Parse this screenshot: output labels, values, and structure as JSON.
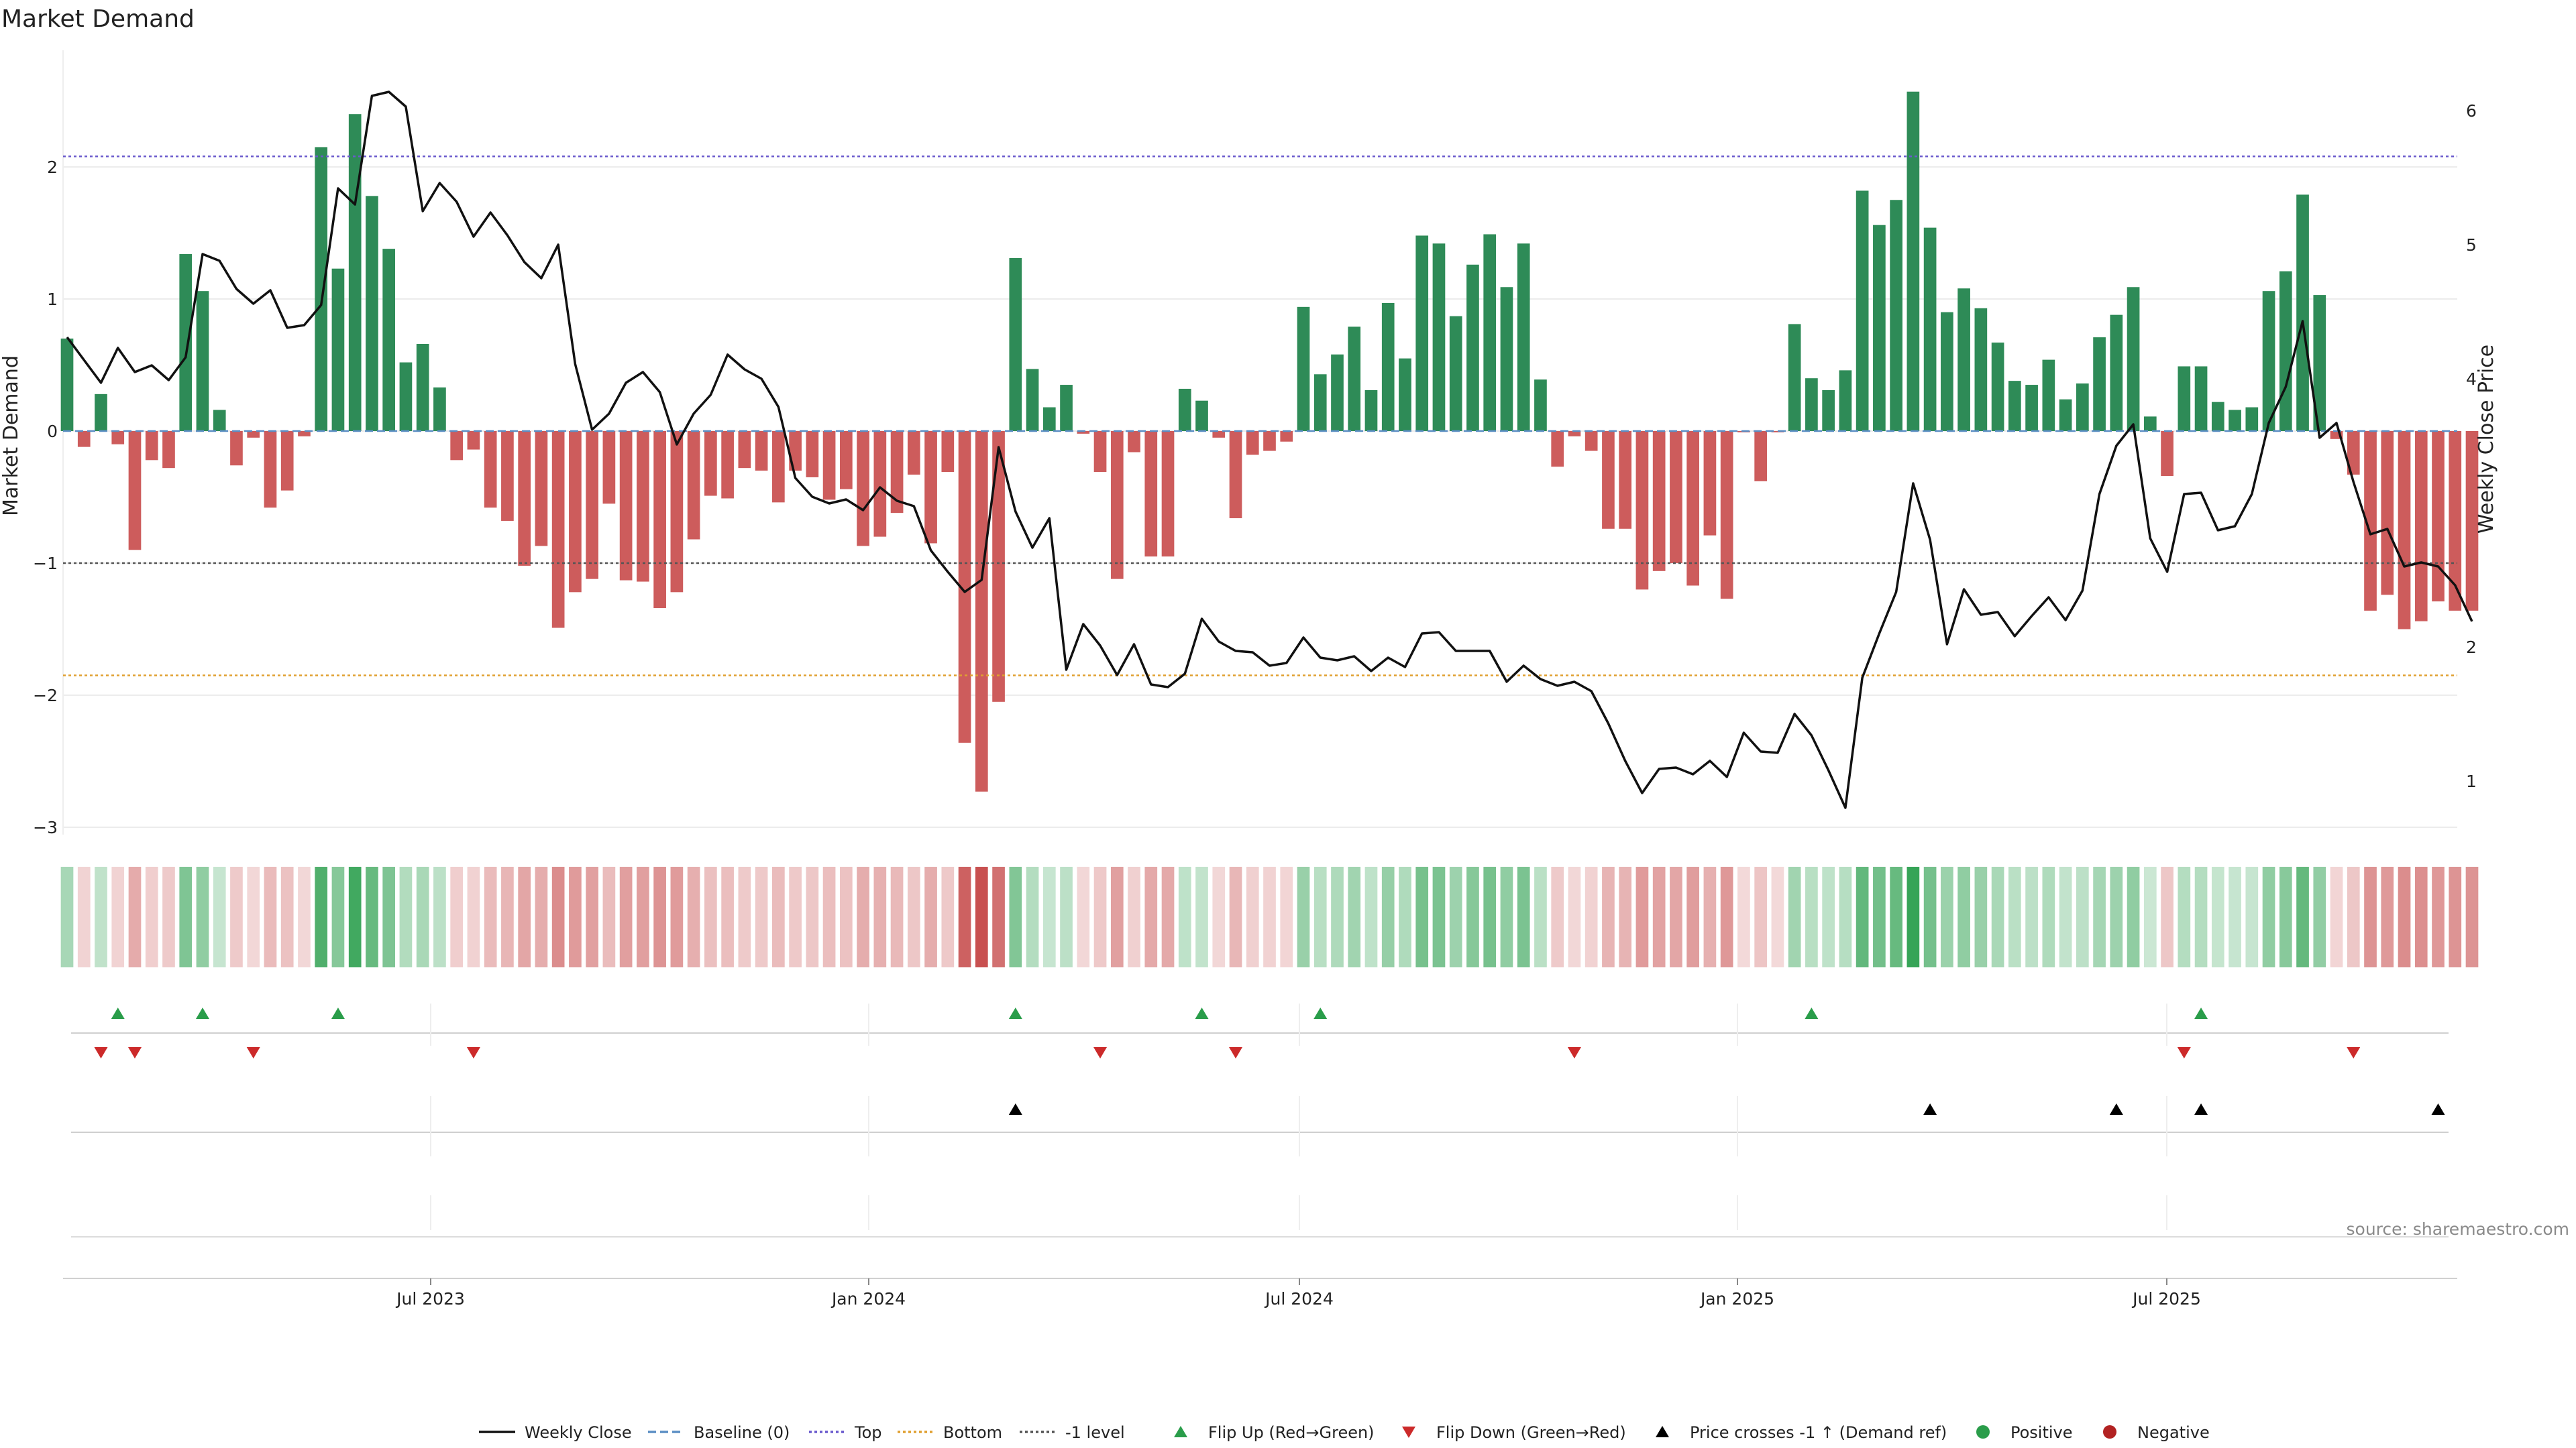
{
  "chart_data": {
    "type": "bar",
    "title": "Market Demand",
    "ylabel": "Market Demand",
    "y2label": "Weekly Close Price",
    "ylim": [
      -3.2,
      2.85
    ],
    "y2lim": [
      0.38,
      6.45
    ],
    "yticks": [
      "2",
      "1",
      "0",
      "−1",
      "−2",
      "−3"
    ],
    "y2ticks": [
      "6",
      "5",
      "4",
      "3",
      "2",
      "1"
    ],
    "xticks": [
      "Jul 2023",
      "Jan 2024",
      "Jul 2024",
      "Jan 2025",
      "Jul 2025"
    ],
    "reference_lines": {
      "top": 2.08,
      "bottom": -1.85,
      "minus_one": -1.0,
      "baseline": 0
    },
    "demand_bars": [
      0.7,
      -0.12,
      0.28,
      -0.1,
      -0.9,
      -0.22,
      -0.28,
      1.34,
      1.06,
      0.16,
      -0.26,
      -0.05,
      -0.58,
      -0.45,
      -0.04,
      2.15,
      1.23,
      2.4,
      1.78,
      1.38,
      0.52,
      0.66,
      0.33,
      -0.22,
      -0.14,
      -0.58,
      -0.68,
      -1.02,
      -0.87,
      -1.49,
      -1.22,
      -1.12,
      -0.55,
      -1.13,
      -1.14,
      -1.34,
      -1.22,
      -0.82,
      -0.49,
      -0.51,
      -0.28,
      -0.3,
      -0.54,
      -0.3,
      -0.35,
      -0.52,
      -0.44,
      -0.87,
      -0.8,
      -0.62,
      -0.33,
      -0.85,
      -0.31,
      -2.36,
      -2.73,
      -2.05,
      1.31,
      0.47,
      0.18,
      0.35,
      -0.02,
      -0.31,
      -1.12,
      -0.16,
      -0.95,
      -0.95,
      0.32,
      0.23,
      -0.05,
      -0.66,
      -0.18,
      -0.15,
      -0.08,
      0.94,
      0.43,
      0.58,
      0.79,
      0.31,
      0.97,
      0.55,
      1.48,
      1.42,
      0.87,
      1.26,
      1.49,
      1.09,
      1.42,
      0.39,
      -0.27,
      -0.04,
      -0.15,
      -0.74,
      -0.74,
      -1.2,
      -1.06,
      -1.0,
      -1.17,
      -0.79,
      -1.27,
      -0.01,
      -0.38,
      -0.01,
      0.81,
      0.4,
      0.31,
      0.46,
      1.82,
      1.56,
      1.75,
      2.57,
      1.54,
      0.9,
      1.08,
      0.93,
      0.67,
      0.38,
      0.35,
      0.54,
      0.24,
      0.36,
      0.71,
      0.88,
      1.09,
      0.11,
      -0.34,
      0.49,
      0.49,
      0.22,
      0.16,
      0.18,
      1.06,
      1.21,
      1.79,
      1.03,
      -0.06,
      -0.33,
      -1.36,
      -1.24,
      -1.5,
      -1.44,
      -1.29,
      -1.36,
      -1.36
    ],
    "weekly_close": [
      4.31,
      4.14,
      3.97,
      4.23,
      4.05,
      4.1,
      3.99,
      4.16,
      4.93,
      4.88,
      4.67,
      4.56,
      4.66,
      4.38,
      4.4,
      4.55,
      5.42,
      5.3,
      6.11,
      6.14,
      6.03,
      5.25,
      5.46,
      5.32,
      5.06,
      5.24,
      5.07,
      4.87,
      4.75,
      5.0,
      4.11,
      3.62,
      3.74,
      3.97,
      4.05,
      3.9,
      3.51,
      3.74,
      3.88,
      4.18,
      4.07,
      4.0,
      3.79,
      3.26,
      3.12,
      3.07,
      3.1,
      3.02,
      3.19,
      3.09,
      3.05,
      2.72,
      2.56,
      2.41,
      2.5,
      3.49,
      3.01,
      2.74,
      2.96,
      1.83,
      2.17,
      2.01,
      1.79,
      2.02,
      1.72,
      1.7,
      1.8,
      2.21,
      2.04,
      1.97,
      1.96,
      1.86,
      1.88,
      2.07,
      1.92,
      1.9,
      1.93,
      1.82,
      1.92,
      1.85,
      2.1,
      2.11,
      1.97,
      1.97,
      1.97,
      1.74,
      1.86,
      1.76,
      1.71,
      1.74,
      1.67,
      1.43,
      1.15,
      0.91,
      1.09,
      1.1,
      1.05,
      1.15,
      1.03,
      1.36,
      1.22,
      1.21,
      1.5,
      1.34,
      1.08,
      0.8,
      1.77,
      2.1,
      2.41,
      3.22,
      2.8,
      2.02,
      2.43,
      2.24,
      2.26,
      2.08,
      2.23,
      2.37,
      2.2,
      2.42,
      3.14,
      3.5,
      3.66,
      2.81,
      2.56,
      3.14,
      3.15,
      2.87,
      2.9,
      3.14,
      3.67,
      3.94,
      4.43,
      3.56,
      3.67,
      3.23,
      2.84,
      2.88,
      2.6,
      2.63,
      2.6,
      2.46,
      2.19
    ],
    "legend": [
      "Weekly Close",
      "Baseline (0)",
      "Top",
      "Bottom",
      "-1 level",
      "Flip Up (Red→Green)",
      "Flip Down (Green→Red)",
      "Price crosses -1 ↑ (Demand ref)",
      "Positive",
      "Negative"
    ],
    "legend_placement": "bottom",
    "flip_up_weeks": [
      3,
      8,
      16,
      56,
      67,
      74,
      103,
      126
    ],
    "flip_down_weeks": [
      2,
      4,
      11,
      24,
      61,
      69,
      89,
      125,
      135
    ],
    "price_cross_weeks": [
      56,
      110,
      121,
      126,
      140
    ],
    "colors": {
      "positive": "#2e8b57",
      "negative": "#cd5c5c",
      "price": "#111111",
      "top": "#6a5acd",
      "bottom": "#e0a030",
      "minus_one": "#555555",
      "baseline": "#5b8ec4",
      "flip_up": "#2a9d4a",
      "flip_down": "#cc2a2a"
    }
  },
  "source_note": "source: sharemaestro.com"
}
